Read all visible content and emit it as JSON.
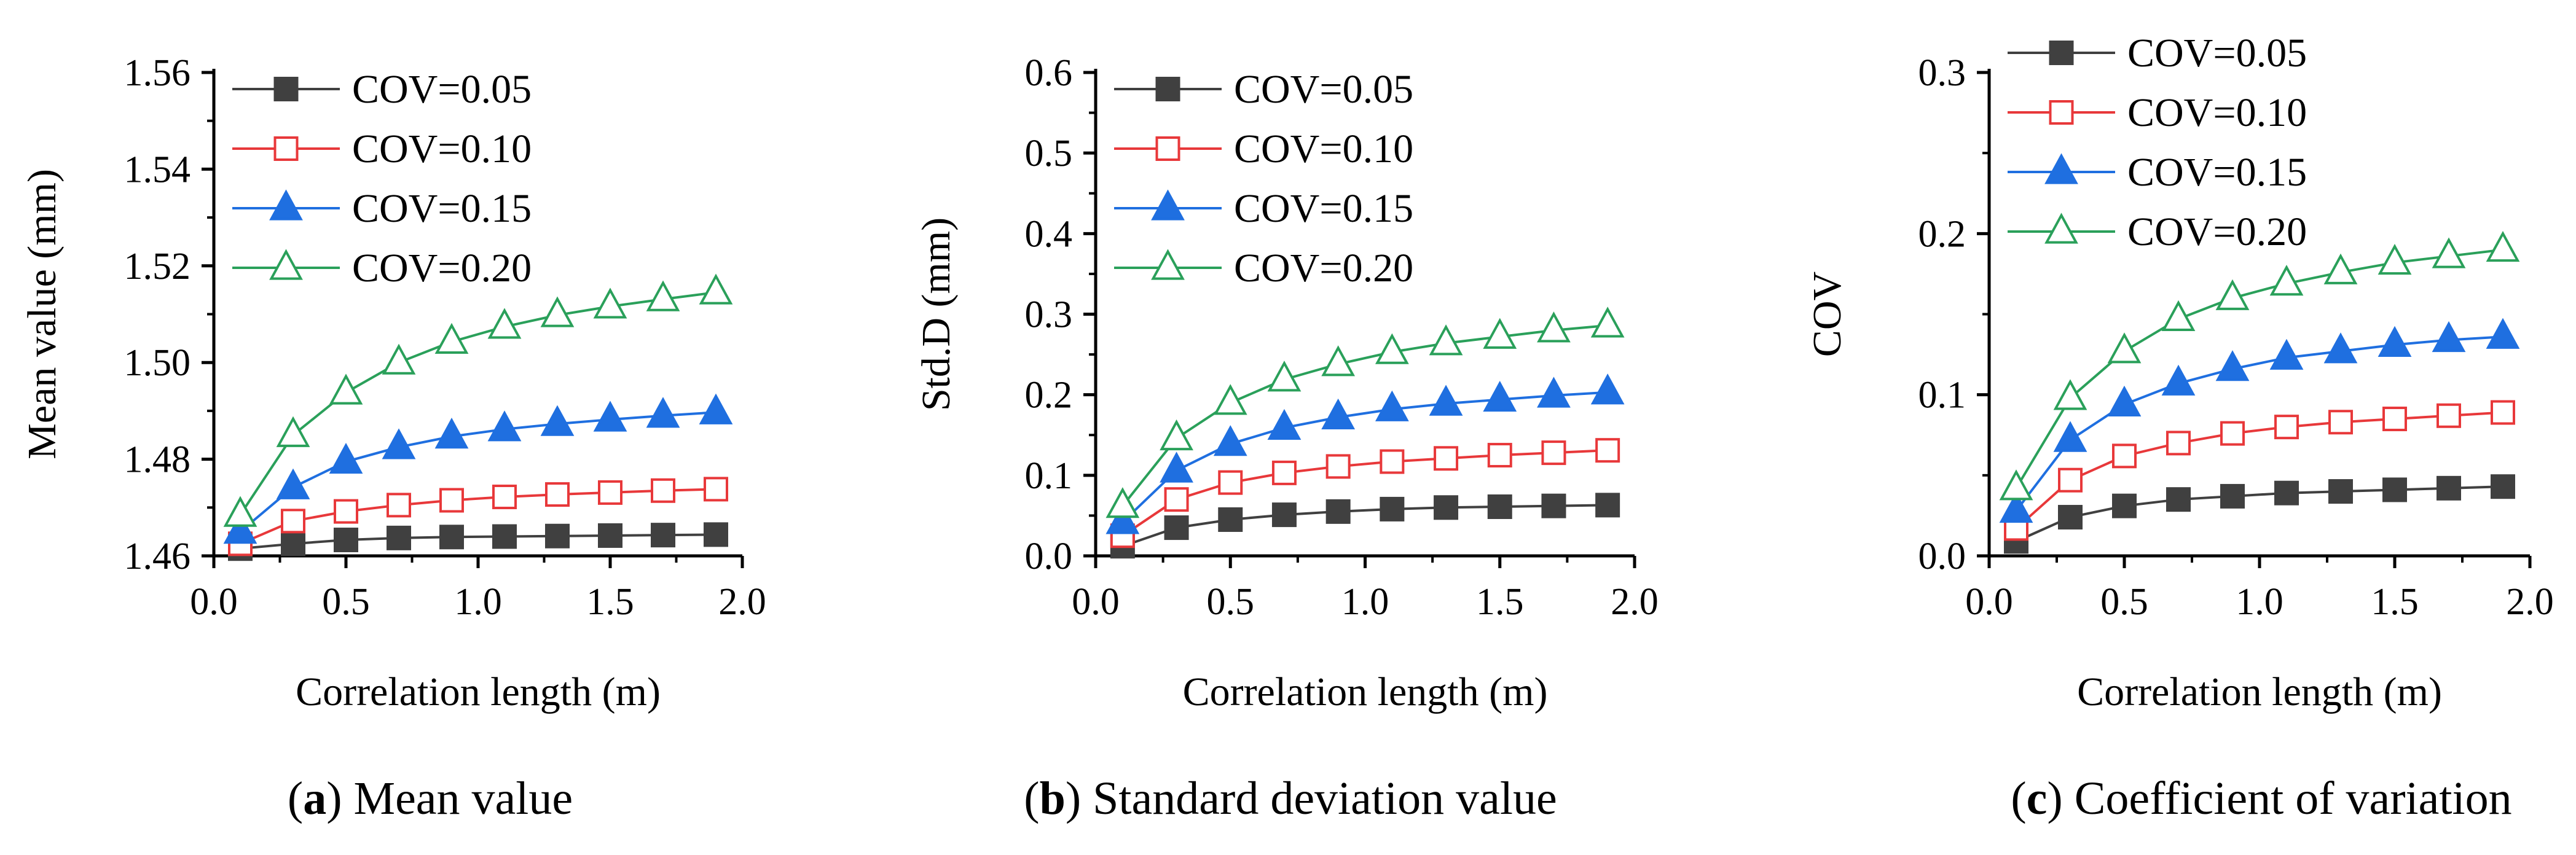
{
  "figure": {
    "series_styles": [
      {
        "name": "COV=0.05",
        "color": "#404040",
        "marker": "square",
        "filled": true
      },
      {
        "name": "COV=0.10",
        "color": "#e8383a",
        "marker": "square",
        "filled": false
      },
      {
        "name": "COV=0.15",
        "color": "#1f6fe0",
        "marker": "triangle",
        "filled": true
      },
      {
        "name": "COV=0.20",
        "color": "#2aa05a",
        "marker": "triangle",
        "filled": false
      }
    ]
  },
  "chart_data": [
    {
      "type": "line",
      "caption_letter": "a",
      "caption_text": ") Mean value",
      "caption_open": "(",
      "xlabel": "Correlation length (m)",
      "ylabel": "Mean value (mm)",
      "xlim": [
        0.0,
        2.0
      ],
      "ylim": [
        1.46,
        1.56
      ],
      "xticks": [
        0.0,
        0.5,
        1.0,
        1.5,
        2.0
      ],
      "xtick_labels": [
        "0.0",
        "0.5",
        "1.0",
        "1.5",
        "2.0"
      ],
      "yticks": [
        1.46,
        1.48,
        1.5,
        1.52,
        1.54,
        1.56
      ],
      "ytick_labels": [
        "1.46",
        "1.48",
        "1.50",
        "1.52",
        "1.54",
        "1.56"
      ],
      "x": [
        0.1,
        0.3,
        0.5,
        0.7,
        0.9,
        1.1,
        1.3,
        1.5,
        1.7,
        1.9
      ],
      "series": [
        {
          "name": "COV=0.05",
          "values": [
            1.4615,
            1.4625,
            1.4633,
            1.4637,
            1.4639,
            1.464,
            1.4641,
            1.4642,
            1.4643,
            1.4644
          ]
        },
        {
          "name": "COV=0.10",
          "values": [
            1.4625,
            1.4672,
            1.4692,
            1.4705,
            1.4715,
            1.4722,
            1.4727,
            1.4731,
            1.4735,
            1.4738
          ]
        },
        {
          "name": "COV=0.15",
          "values": [
            1.465,
            1.4742,
            1.4795,
            1.4825,
            1.4847,
            1.4862,
            1.4873,
            1.4882,
            1.489,
            1.4897
          ]
        },
        {
          "name": "COV=0.20",
          "values": [
            1.4685,
            1.485,
            1.4938,
            1.5,
            1.5043,
            1.5074,
            1.5098,
            1.5116,
            1.5131,
            1.5145
          ]
        }
      ]
    },
    {
      "type": "line",
      "caption_letter": "b",
      "caption_text": ") Standard deviation value",
      "caption_open": "(",
      "xlabel": "Correlation length (m)",
      "ylabel": "Std.D (mm)",
      "xlim": [
        0.0,
        2.0
      ],
      "ylim": [
        0.0,
        0.6
      ],
      "xticks": [
        0.0,
        0.5,
        1.0,
        1.5,
        2.0
      ],
      "xtick_labels": [
        "0.0",
        "0.5",
        "1.0",
        "1.5",
        "2.0"
      ],
      "yticks": [
        0.0,
        0.1,
        0.2,
        0.3,
        0.4,
        0.5,
        0.6
      ],
      "ytick_labels": [
        "0.0",
        "0.1",
        "0.2",
        "0.3",
        "0.4",
        "0.5",
        "0.6"
      ],
      "x": [
        0.1,
        0.3,
        0.5,
        0.7,
        0.9,
        1.1,
        1.3,
        1.5,
        1.7,
        1.9
      ],
      "series": [
        {
          "name": "COV=0.05",
          "values": [
            0.012,
            0.035,
            0.045,
            0.051,
            0.055,
            0.058,
            0.06,
            0.061,
            0.062,
            0.063
          ]
        },
        {
          "name": "COV=0.10",
          "values": [
            0.025,
            0.07,
            0.091,
            0.103,
            0.111,
            0.117,
            0.121,
            0.125,
            0.128,
            0.131
          ]
        },
        {
          "name": "COV=0.15",
          "values": [
            0.042,
            0.106,
            0.139,
            0.159,
            0.172,
            0.182,
            0.189,
            0.194,
            0.199,
            0.203
          ]
        },
        {
          "name": "COV=0.20",
          "values": [
            0.062,
            0.146,
            0.19,
            0.219,
            0.238,
            0.253,
            0.264,
            0.272,
            0.28,
            0.286
          ]
        }
      ]
    },
    {
      "type": "line",
      "caption_letter": "c",
      "caption_text": ") Coefficient of variation",
      "caption_open": "(",
      "xlabel": "Correlation length (m)",
      "ylabel": "COV",
      "xlim": [
        0.0,
        2.0
      ],
      "ylim": [
        0.0,
        0.3
      ],
      "xticks": [
        0.0,
        0.5,
        1.0,
        1.5,
        2.0
      ],
      "xtick_labels": [
        "0.0",
        "0.5",
        "1.0",
        "1.5",
        "2.0"
      ],
      "yticks": [
        0.0,
        0.1,
        0.2,
        0.3
      ],
      "ytick_labels": [
        "0.0",
        "0.1",
        "0.2",
        "0.3"
      ],
      "x": [
        0.1,
        0.3,
        0.5,
        0.7,
        0.9,
        1.1,
        1.3,
        1.5,
        1.7,
        1.9
      ],
      "series": [
        {
          "name": "COV=0.05",
          "values": [
            0.009,
            0.024,
            0.031,
            0.035,
            0.037,
            0.039,
            0.04,
            0.041,
            0.042,
            0.043
          ]
        },
        {
          "name": "COV=0.10",
          "values": [
            0.017,
            0.047,
            0.062,
            0.07,
            0.076,
            0.08,
            0.083,
            0.085,
            0.087,
            0.089
          ]
        },
        {
          "name": "COV=0.15",
          "values": [
            0.028,
            0.072,
            0.094,
            0.107,
            0.116,
            0.123,
            0.127,
            0.131,
            0.134,
            0.136
          ]
        },
        {
          "name": "COV=0.20",
          "values": [
            0.042,
            0.098,
            0.127,
            0.147,
            0.16,
            0.169,
            0.176,
            0.182,
            0.186,
            0.19
          ]
        }
      ]
    }
  ]
}
